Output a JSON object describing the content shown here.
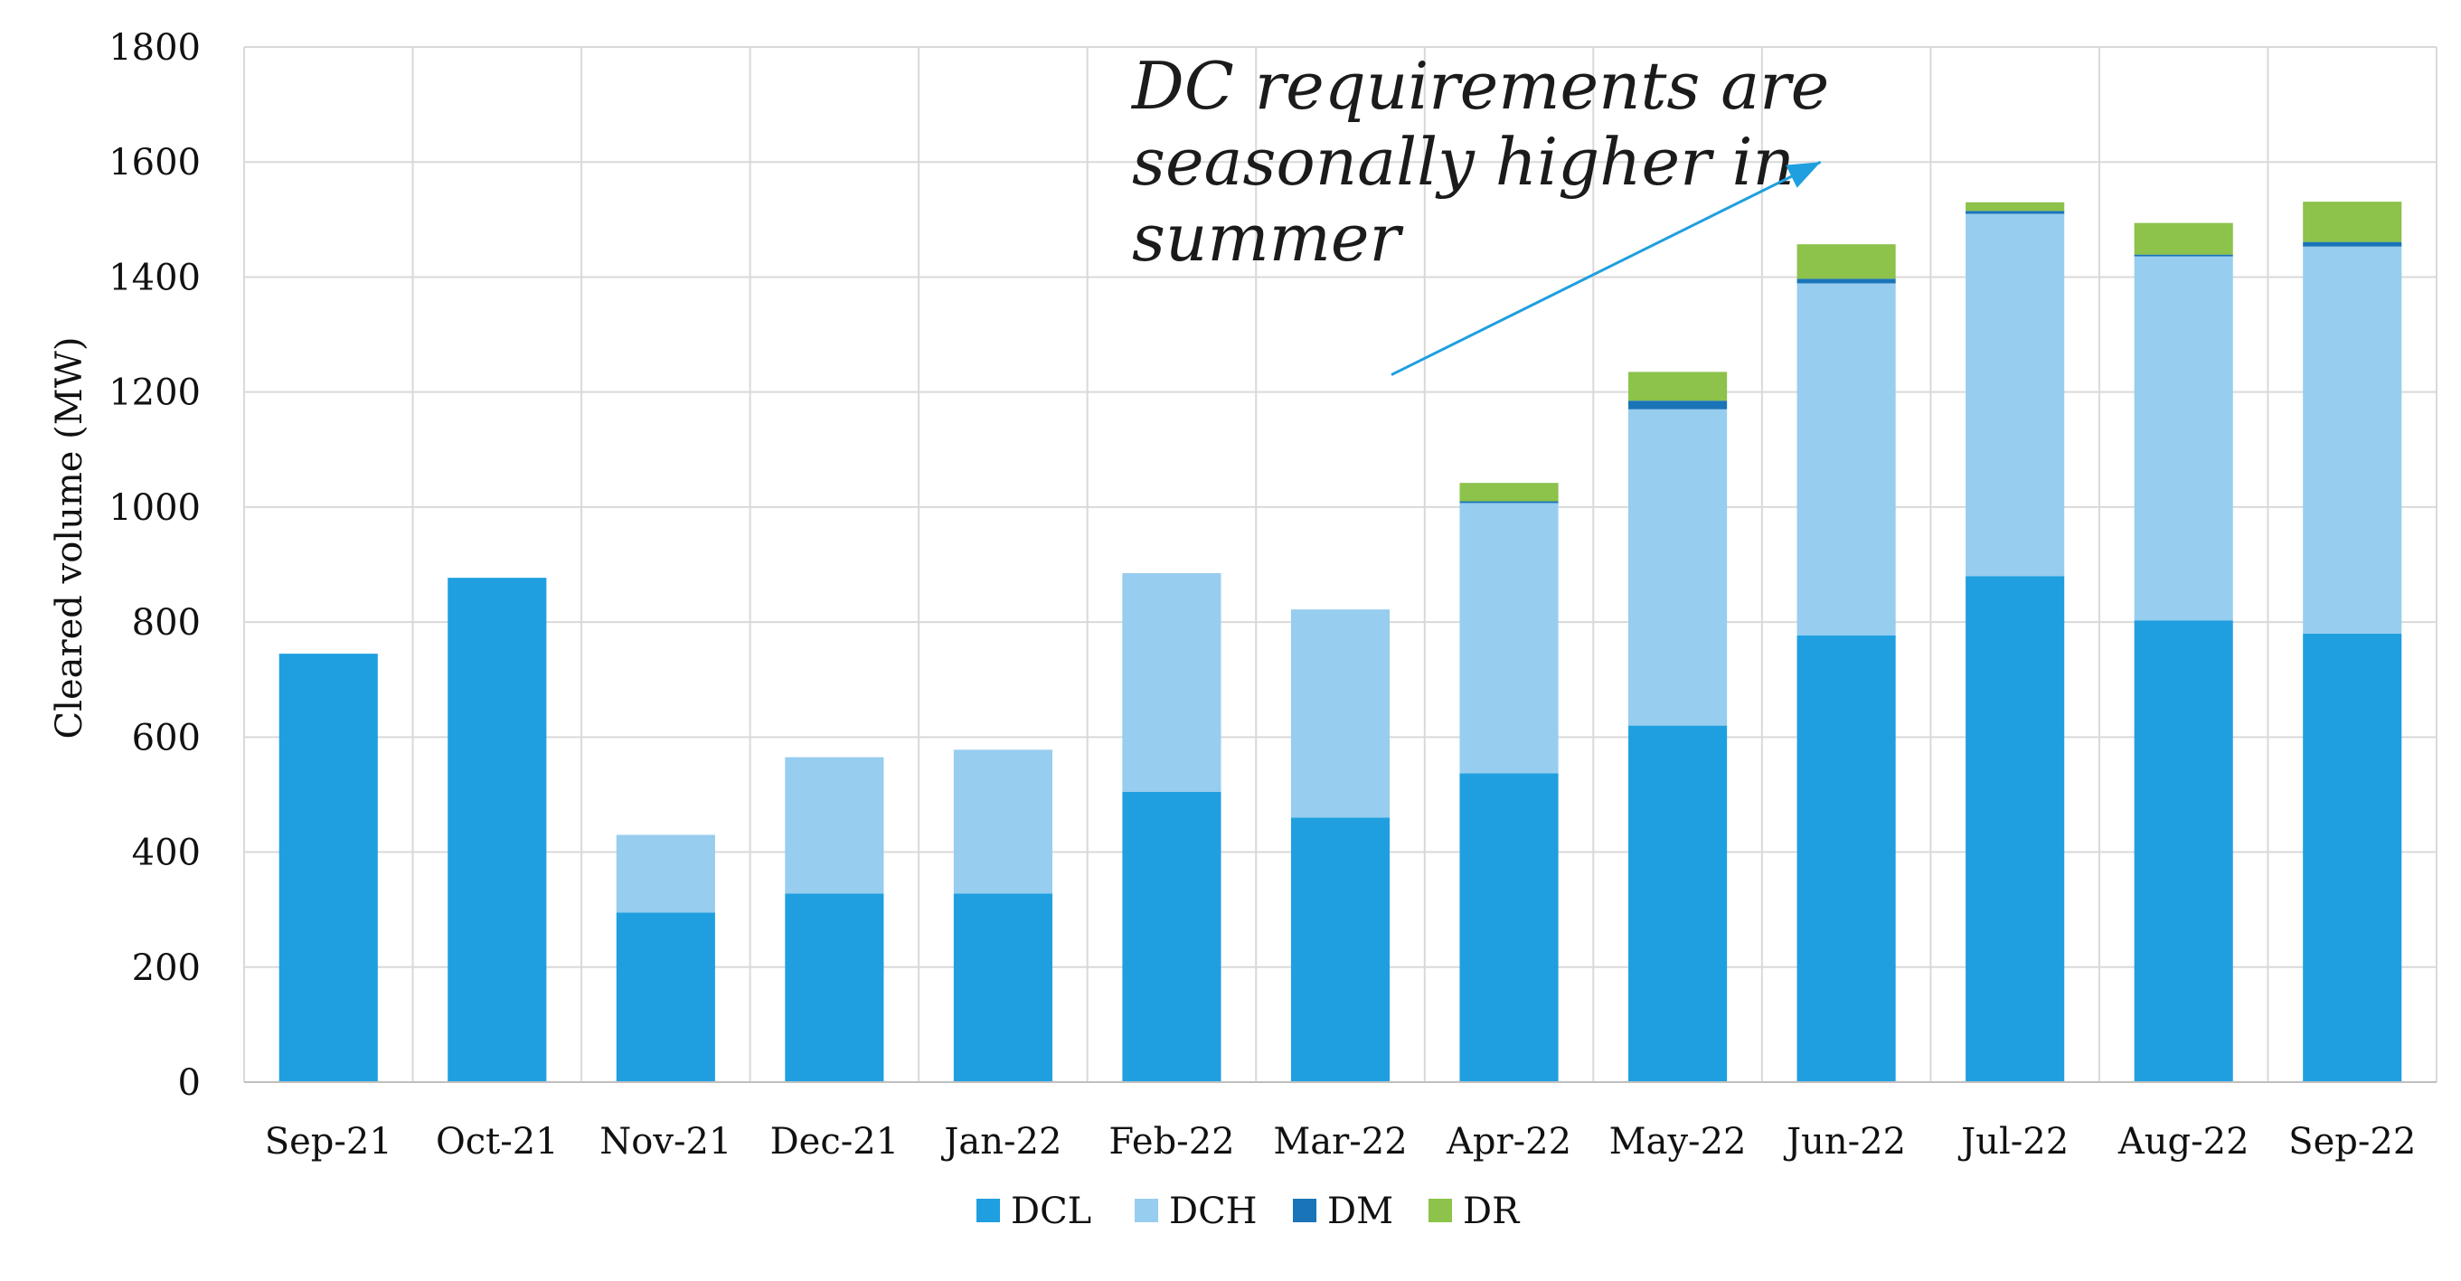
{
  "chart_data": {
    "type": "bar",
    "stacked": true,
    "categories": [
      "Sep-21",
      "Oct-21",
      "Nov-21",
      "Dec-21",
      "Jan-22",
      "Feb-22",
      "Mar-22",
      "Apr-22",
      "May-22",
      "Jun-22",
      "Jul-22",
      "Aug-22",
      "Sep-22"
    ],
    "series": [
      {
        "name": "DCL",
        "color": "#1f9fdf",
        "values": [
          745,
          877,
          295,
          328,
          328,
          505,
          460,
          537,
          620,
          777,
          880,
          803,
          780
        ]
      },
      {
        "name": "DCH",
        "color": "#97cdef",
        "values": [
          0,
          0,
          135,
          237,
          250,
          380,
          362,
          470,
          550,
          612,
          630,
          633,
          673
        ]
      },
      {
        "name": "DM",
        "color": "#1a74b8",
        "values": [
          0,
          0,
          0,
          0,
          0,
          0,
          0,
          3,
          15,
          8,
          5,
          3,
          8
        ]
      },
      {
        "name": "DR",
        "color": "#8dc24b",
        "values": [
          0,
          0,
          0,
          0,
          0,
          0,
          0,
          32,
          50,
          60,
          15,
          55,
          70
        ]
      }
    ],
    "ylabel": "Cleared volume (MW)",
    "xlabel": "",
    "ylim": [
      0,
      1800
    ],
    "yticks": [
      0,
      200,
      400,
      600,
      800,
      1000,
      1200,
      1400,
      1600,
      1800
    ],
    "grid": true,
    "legend_position": "bottom",
    "annotation": {
      "lines": [
        "DC requirements are",
        "seasonally higher in",
        "summer"
      ],
      "arrow_from": {
        "x": "Apr-22",
        "y": 1230
      },
      "arrow_to": {
        "x": "Jul-22",
        "y": 1600
      }
    }
  }
}
